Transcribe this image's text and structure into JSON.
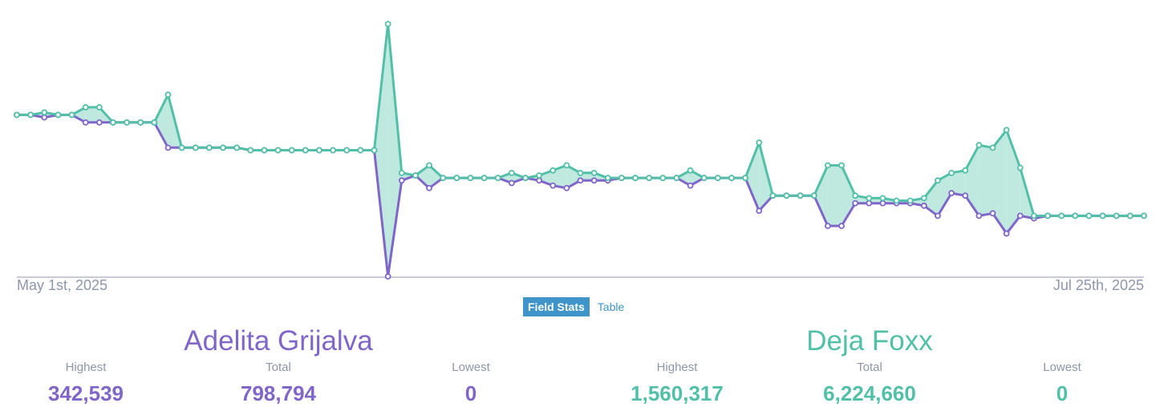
{
  "chart_data": {
    "type": "area",
    "x_start_label": "May 1st, 2025",
    "x_end_label": "Jul 25th, 2025",
    "ylim": [
      0,
      1.0
    ],
    "colors": {
      "candidate_a": "#8066c8",
      "candidate_b": "#52c0a8"
    },
    "series": [
      {
        "name": "Adelita Grijalva",
        "values": [
          0.64,
          0.64,
          0.63,
          0.64,
          0.64,
          0.61,
          0.61,
          0.61,
          0.61,
          0.61,
          0.61,
          0.51,
          0.51,
          0.51,
          0.51,
          0.51,
          0.51,
          0.5,
          0.5,
          0.5,
          0.5,
          0.5,
          0.5,
          0.5,
          0.5,
          0.5,
          0.5,
          0.0,
          0.38,
          0.4,
          0.35,
          0.39,
          0.39,
          0.39,
          0.39,
          0.39,
          0.37,
          0.39,
          0.38,
          0.36,
          0.35,
          0.38,
          0.38,
          0.38,
          0.39,
          0.39,
          0.39,
          0.39,
          0.39,
          0.36,
          0.39,
          0.39,
          0.39,
          0.39,
          0.26,
          0.32,
          0.32,
          0.32,
          0.32,
          0.2,
          0.2,
          0.29,
          0.29,
          0.29,
          0.29,
          0.29,
          0.28,
          0.24,
          0.33,
          0.32,
          0.24,
          0.25,
          0.17,
          0.24,
          0.23,
          0.24,
          0.24,
          0.24,
          0.24,
          0.24,
          0.24,
          0.24,
          0.24
        ]
      },
      {
        "name": "Deja Foxx",
        "values": [
          0.64,
          0.64,
          0.65,
          0.64,
          0.64,
          0.67,
          0.67,
          0.61,
          0.61,
          0.61,
          0.61,
          0.72,
          0.51,
          0.51,
          0.51,
          0.51,
          0.51,
          0.5,
          0.5,
          0.5,
          0.5,
          0.5,
          0.5,
          0.5,
          0.5,
          0.5,
          0.5,
          1.0,
          0.41,
          0.4,
          0.44,
          0.39,
          0.39,
          0.39,
          0.39,
          0.39,
          0.41,
          0.39,
          0.4,
          0.42,
          0.44,
          0.41,
          0.41,
          0.39,
          0.39,
          0.39,
          0.39,
          0.39,
          0.39,
          0.42,
          0.39,
          0.39,
          0.39,
          0.39,
          0.53,
          0.32,
          0.32,
          0.32,
          0.32,
          0.44,
          0.44,
          0.32,
          0.31,
          0.31,
          0.3,
          0.3,
          0.31,
          0.38,
          0.41,
          0.42,
          0.52,
          0.51,
          0.58,
          0.43,
          0.24,
          0.24,
          0.24,
          0.24,
          0.24,
          0.24,
          0.24,
          0.24,
          0.24
        ]
      }
    ]
  },
  "tabs": {
    "active": "Field Stats",
    "inactive": "Table"
  },
  "candidates": [
    {
      "name": "Adelita Grijalva",
      "stats": [
        {
          "label": "Highest",
          "value": "342,539"
        },
        {
          "label": "Total",
          "value": "798,794"
        },
        {
          "label": "Lowest",
          "value": "0"
        }
      ]
    },
    {
      "name": "Deja Foxx",
      "stats": [
        {
          "label": "Highest",
          "value": "1,560,317"
        },
        {
          "label": "Total",
          "value": "6,224,660"
        },
        {
          "label": "Lowest",
          "value": "0"
        }
      ]
    }
  ]
}
